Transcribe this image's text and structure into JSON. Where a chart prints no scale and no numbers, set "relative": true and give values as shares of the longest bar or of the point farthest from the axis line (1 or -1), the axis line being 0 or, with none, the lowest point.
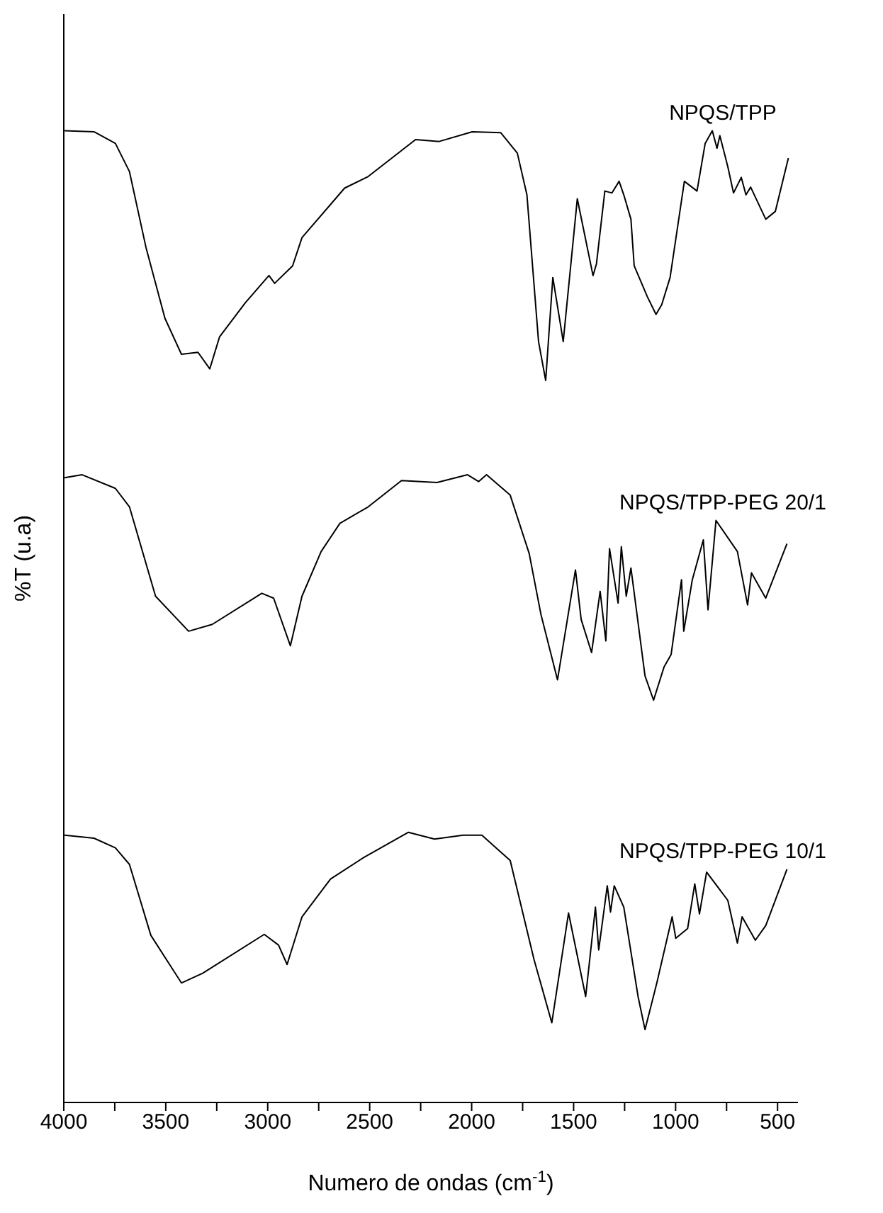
{
  "chart_data": {
    "type": "line",
    "relative": true,
    "xlabel": "Numero de ondas (cm$^{-1}$)",
    "ylabel": "%T (u.a)",
    "xlim": [
      4000,
      400
    ],
    "xticks": [
      4000,
      {
        "value": 3750,
        "label": null
      },
      3500,
      {
        "value": 3250,
        "label": null
      },
      3000,
      {
        "value": 2750,
        "label": null
      },
      2500,
      {
        "value": 2250,
        "label": null
      },
      2000,
      {
        "value": 1750,
        "label": null
      },
      1500,
      {
        "value": 1250,
        "label": null
      },
      1000,
      {
        "value": 750,
        "label": null
      },
      500
    ],
    "grid": false,
    "legend": false,
    "marker": "none",
    "line_style": "solid",
    "series": [
      {
        "name": "NPQS/TPP",
        "color": "#000000",
        "x": [
          3996,
          3852,
          3747,
          3678,
          3597,
          3504,
          3423,
          3342,
          3284,
          3236,
          3110,
          2994,
          2966,
          2878,
          2832,
          2623,
          2507,
          2275,
          2159,
          1997,
          1857,
          1776,
          1729,
          1672,
          1637,
          1602,
          1551,
          1482,
          1405,
          1388,
          1347,
          1312,
          1277,
          1254,
          1219,
          1203,
          1138,
          1096,
          1068,
          1027,
          957,
          895,
          855,
          820,
          797,
          783,
          744,
          716,
          678,
          655,
          632,
          558,
          511,
          447
        ],
        "values": [
          1.0,
          0.999,
          0.987,
          0.958,
          0.88,
          0.807,
          0.77,
          0.772,
          0.755,
          0.788,
          0.823,
          0.851,
          0.843,
          0.861,
          0.89,
          0.941,
          0.953,
          0.991,
          0.989,
          0.999,
          0.998,
          0.977,
          0.934,
          0.783,
          0.743,
          0.849,
          0.783,
          0.93,
          0.851,
          0.863,
          0.938,
          0.936,
          0.948,
          0.934,
          0.909,
          0.861,
          0.829,
          0.811,
          0.821,
          0.849,
          0.948,
          0.938,
          0.987,
          1.0,
          0.982,
          0.995,
          0.963,
          0.936,
          0.952,
          0.934,
          0.942,
          0.909,
          0.917,
          0.972
        ]
      },
      {
        "name": "NPQS/TPP-PEG 20/1",
        "color": "#000000",
        "x": [
          3996,
          3910,
          3747,
          3678,
          3550,
          3388,
          3272,
          3029,
          2971,
          2889,
          2832,
          2738,
          2646,
          2507,
          2344,
          2170,
          2020,
          1966,
          1927,
          1811,
          1718,
          1660,
          1579,
          1491,
          1463,
          1412,
          1370,
          1342,
          1324,
          1282,
          1266,
          1242,
          1219,
          1150,
          1108,
          1057,
          1022,
          971,
          960,
          918,
          864,
          841,
          802,
          697,
          647,
          628,
          558,
          454
        ],
        "values": [
          0.643,
          0.646,
          0.632,
          0.613,
          0.521,
          0.485,
          0.492,
          0.524,
          0.519,
          0.47,
          0.521,
          0.567,
          0.596,
          0.613,
          0.64,
          0.638,
          0.646,
          0.639,
          0.646,
          0.625,
          0.565,
          0.502,
          0.435,
          0.548,
          0.497,
          0.463,
          0.526,
          0.475,
          0.57,
          0.514,
          0.572,
          0.521,
          0.55,
          0.439,
          0.414,
          0.448,
          0.461,
          0.538,
          0.485,
          0.538,
          0.579,
          0.507,
          0.599,
          0.567,
          0.512,
          0.545,
          0.519,
          0.575
        ]
      },
      {
        "name": "NPQS/TPP-PEG 10/1",
        "color": "#000000",
        "x": [
          3996,
          3852,
          3747,
          3678,
          3573,
          3423,
          3319,
          3017,
          2947,
          2905,
          2832,
          2692,
          2530,
          2310,
          2182,
          2042,
          1950,
          1811,
          1694,
          1607,
          1525,
          1441,
          1393,
          1377,
          1335,
          1319,
          1301,
          1254,
          1184,
          1150,
          1092,
          1017,
          999,
          941,
          906,
          883,
          848,
          744,
          697,
          674,
          609,
          558,
          454
        ],
        "values": [
          0.275,
          0.272,
          0.262,
          0.245,
          0.172,
          0.123,
          0.133,
          0.173,
          0.162,
          0.142,
          0.191,
          0.23,
          0.252,
          0.278,
          0.271,
          0.275,
          0.275,
          0.249,
          0.147,
          0.082,
          0.195,
          0.109,
          0.201,
          0.157,
          0.223,
          0.196,
          0.223,
          0.201,
          0.109,
          0.075,
          0.123,
          0.191,
          0.169,
          0.179,
          0.225,
          0.194,
          0.237,
          0.208,
          0.164,
          0.191,
          0.167,
          0.182,
          0.24
        ]
      }
    ]
  }
}
